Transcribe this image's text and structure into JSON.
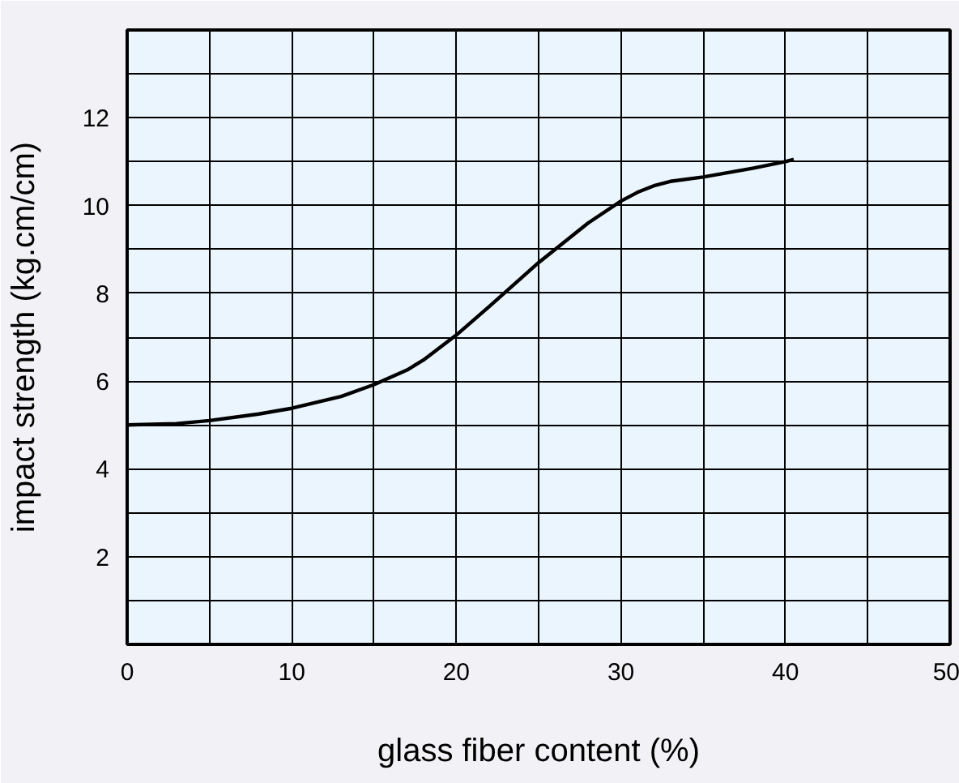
{
  "chart_data": {
    "type": "line",
    "xlabel": "glass fiber content (%)",
    "ylabel": "impact strength (kg.cm/cm)",
    "x": [
      0,
      3,
      5,
      8,
      10,
      13,
      15,
      17,
      18,
      20,
      22,
      25,
      28,
      30,
      31,
      32,
      33,
      35,
      38,
      40,
      40.5
    ],
    "series": [
      {
        "color": "#000000",
        "values": [
          5.0,
          5.03,
          5.1,
          5.25,
          5.38,
          5.65,
          5.92,
          6.25,
          6.48,
          7.05,
          7.7,
          8.7,
          9.6,
          10.1,
          10.3,
          10.45,
          10.55,
          10.65,
          10.85,
          11.0,
          11.05
        ]
      }
    ],
    "xlim": [
      0,
      50
    ],
    "ylim": [
      0,
      14
    ],
    "xticks": [
      0,
      {
        "value": 5,
        "label": null
      },
      10,
      {
        "value": 15,
        "label": null
      },
      20,
      {
        "value": 25,
        "label": null
      },
      30,
      {
        "value": 35,
        "label": null
      },
      40,
      {
        "value": 45,
        "label": null
      },
      50
    ],
    "yticks": [
      {
        "value": 1,
        "label": null
      },
      2,
      {
        "value": 3,
        "label": null
      },
      4,
      {
        "value": 5,
        "label": null
      },
      6,
      {
        "value": 7,
        "label": null
      },
      8,
      {
        "value": 9,
        "label": null
      },
      10,
      {
        "value": 11,
        "label": null
      },
      12,
      {
        "value": 13,
        "label": null
      }
    ],
    "grid": true,
    "marker": "none",
    "line_style": "solid"
  }
}
